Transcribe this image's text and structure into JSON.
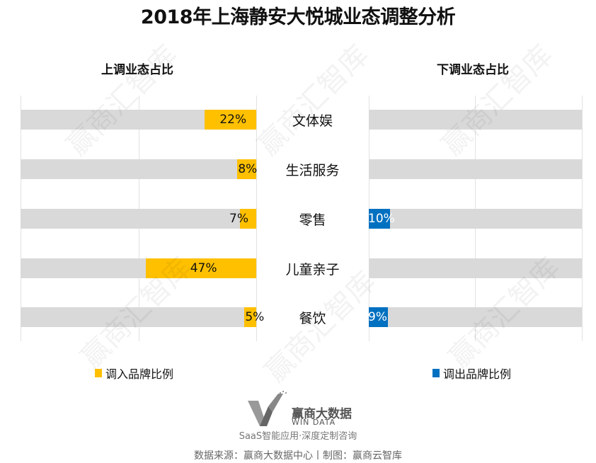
{
  "title": "2018年上海静安大悦城业态调整分析",
  "left_panel_title": "上调业态占比",
  "right_panel_title": "下调业态占比",
  "categories": [
    "文体娱",
    "生活服务",
    "零售",
    "儿童亲子",
    "餐饮"
  ],
  "legend": {
    "in": {
      "label": "调入品牌比例",
      "color": "#ffc000"
    },
    "out": {
      "label": "调出品牌比例",
      "color": "#0070c0"
    }
  },
  "left_values": [
    "22%",
    "8%",
    "7%",
    "47%",
    "5%"
  ],
  "right_values": [
    "",
    "",
    "10%",
    "",
    "9%"
  ],
  "logo": {
    "name": "赢商大数据",
    "sub": "WIN DATA"
  },
  "tagline": "SaaS智能应用·深度定制咨询",
  "source": "数据来源：赢商大数据中心丨制图：赢商云智库",
  "watermark": "赢商汇智库",
  "chart_data": {
    "type": "bar",
    "title": "2018年上海静安大悦城业态调整分析",
    "categories": [
      "文体娱",
      "生活服务",
      "零售",
      "儿童亲子",
      "餐饮"
    ],
    "series": [
      {
        "name": "调入品牌比例",
        "panel": "上调业态占比",
        "color": "#ffc000",
        "values": [
          22,
          8,
          7,
          47,
          5
        ]
      },
      {
        "name": "调出品牌比例",
        "panel": "下调业态占比",
        "color": "#0070c0",
        "values": [
          0,
          0,
          10,
          0,
          9
        ]
      }
    ],
    "orientation": "horizontal",
    "xlabel": "",
    "ylabel": "",
    "xlim_left": [
      0,
      100
    ],
    "legend_position": "bottom",
    "grid": true
  }
}
